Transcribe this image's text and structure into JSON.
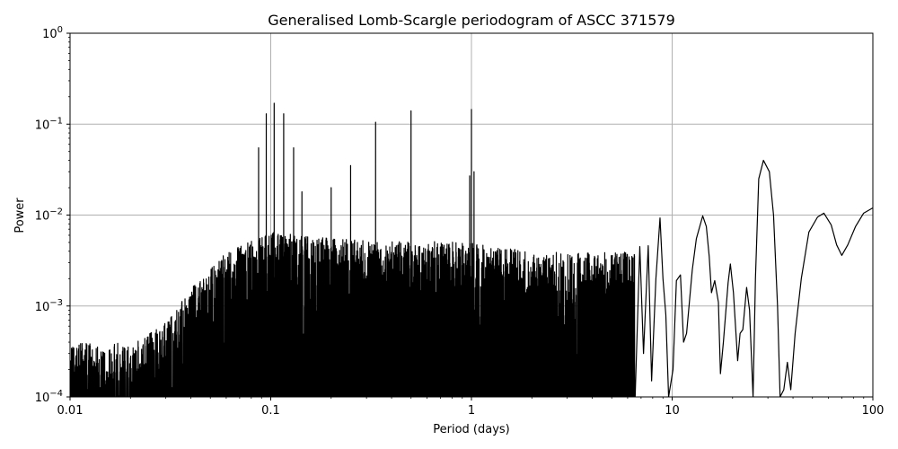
{
  "chart_data": {
    "type": "line",
    "title": "Generalised Lomb-Scargle periodogram of ASCC 371579",
    "xlabel": "Period (days)",
    "ylabel": "Power",
    "xscale": "log",
    "yscale": "log",
    "xlim": [
      0.01,
      100
    ],
    "ylim": [
      0.0001,
      1
    ],
    "grid": true,
    "legend": null,
    "xticks": [
      {
        "value": 0.01,
        "label": "0.01"
      },
      {
        "value": 0.1,
        "label": "0.1"
      },
      {
        "value": 1,
        "label": "1"
      },
      {
        "value": 10,
        "label": "10"
      },
      {
        "value": 100,
        "label": "100"
      }
    ],
    "yticks": [
      {
        "value": 0.0001,
        "base": "10",
        "exp": "−4"
      },
      {
        "value": 0.001,
        "base": "10",
        "exp": "−3"
      },
      {
        "value": 0.01,
        "base": "10",
        "exp": "−2"
      },
      {
        "value": 0.1,
        "base": "10",
        "exp": "−1"
      },
      {
        "value": 1,
        "base": "10",
        "exp": "0"
      }
    ],
    "series": [
      {
        "name": "Power",
        "color": "#000000",
        "notable_peaks": [
          {
            "period": 0.087,
            "power": 0.055
          },
          {
            "period": 0.095,
            "power": 0.13
          },
          {
            "period": 0.104,
            "power": 0.17
          },
          {
            "period": 0.116,
            "power": 0.13
          },
          {
            "period": 0.13,
            "power": 0.055
          },
          {
            "period": 0.143,
            "power": 0.018
          },
          {
            "period": 0.2,
            "power": 0.02
          },
          {
            "period": 0.25,
            "power": 0.035
          },
          {
            "period": 0.333,
            "power": 0.105
          },
          {
            "period": 0.5,
            "power": 0.14
          },
          {
            "period": 0.98,
            "power": 0.027
          },
          {
            "period": 1.0,
            "power": 0.145
          },
          {
            "period": 1.03,
            "power": 0.03
          },
          {
            "period": 8.7,
            "power": 0.0093
          },
          {
            "period": 14.2,
            "power": 0.0098
          },
          {
            "period": 19.5,
            "power": 0.0029
          },
          {
            "period": 23.5,
            "power": 0.0016
          },
          {
            "period": 28.5,
            "power": 0.04
          },
          {
            "period": 37.5,
            "power": 0.00024
          },
          {
            "period": 57,
            "power": 0.0105
          },
          {
            "period": 70,
            "power": 0.0036
          },
          {
            "period": 100,
            "power": 0.012
          }
        ],
        "envelope": [
          {
            "period": 0.01,
            "power": 0.0003
          },
          {
            "period": 0.02,
            "power": 0.0003
          },
          {
            "period": 0.03,
            "power": 0.0005
          },
          {
            "period": 0.04,
            "power": 0.0012
          },
          {
            "period": 0.06,
            "power": 0.003
          },
          {
            "period": 0.1,
            "power": 0.005
          },
          {
            "period": 0.3,
            "power": 0.004
          },
          {
            "period": 1,
            "power": 0.004
          },
          {
            "period": 2,
            "power": 0.003
          },
          {
            "period": 5,
            "power": 0.003
          }
        ]
      }
    ]
  },
  "figure": {
    "title": "Generalised Lomb-Scargle periodogram of ASCC 371579",
    "xlabel": "Period (days)",
    "ylabel": "Power",
    "line_color": "#000000",
    "grid_color": "#b0b0b0"
  }
}
